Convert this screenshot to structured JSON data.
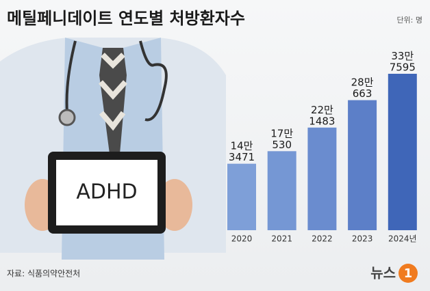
{
  "chart_data": {
    "type": "bar",
    "title": "메틸페니데이트 연도별 처방환자수",
    "unit": "단위: 명",
    "source": "자료: 식품의약안전처",
    "logo": {
      "name": "뉴스",
      "mark": "1"
    },
    "tablet_text": "ADHD",
    "categories": [
      "2020",
      "2021",
      "2022",
      "2023",
      "2024년"
    ],
    "values": [
      143471,
      170530,
      221483,
      280663,
      337595
    ],
    "value_labels": [
      "14만\n3471",
      "17만\n530",
      "22만\n1483",
      "28만\n663",
      "33만\n7595"
    ],
    "colors": [
      "#7e9fd8",
      "#7597d4",
      "#6a8ccf",
      "#5c7fc8",
      "#3f66b8"
    ]
  }
}
